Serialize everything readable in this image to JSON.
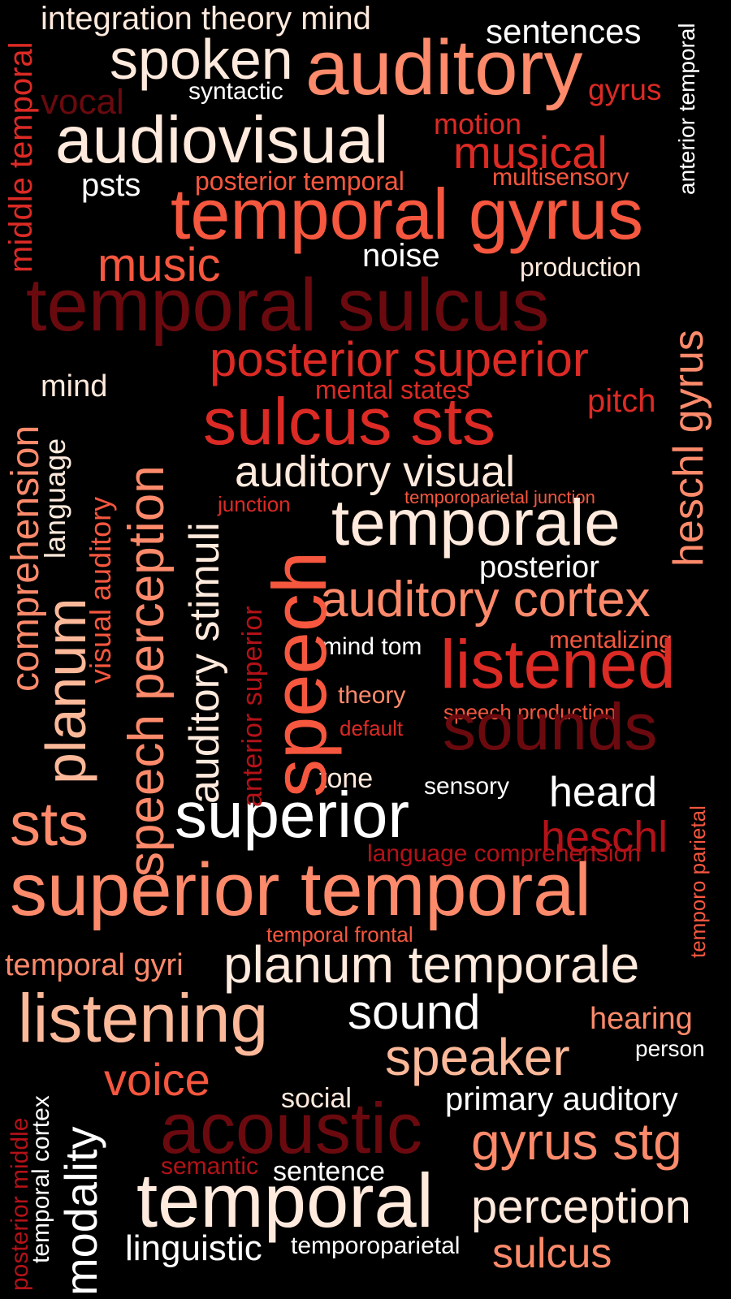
{
  "colors": {
    "background": "#000000",
    "white": "#ffffff",
    "cream": "#ffeadd",
    "peach": "#fcb99a",
    "salmon": "#fc8a6b",
    "coral": "#f6573f",
    "red": "#dc2a25",
    "crimson": "#b31218",
    "maroon": "#6a0a0f"
  },
  "words": [
    "integration theory mind",
    "sentences",
    "spoken",
    "auditory",
    "syntactic",
    "gyrus",
    "vocal",
    "audiovisual",
    "motion",
    "musical",
    "psts",
    "posterior temporal",
    "multisensory",
    "temporal gyrus",
    "music",
    "noise",
    "production",
    "temporal sulcus",
    "posterior superior",
    "mind",
    "mental states",
    "pitch",
    "sulcus sts",
    "auditory visual",
    "temporoparietal junction",
    "junction",
    "temporale",
    "posterior",
    "auditory cortex",
    "mentalizing",
    "mind tom",
    "listened",
    "theory",
    "speech production",
    "default",
    "sounds",
    "tone",
    "sensory",
    "heard",
    "sts",
    "superior",
    "heschl",
    "language comprehension",
    "superior temporal",
    "temporal frontal",
    "temporal gyri",
    "planum temporale",
    "listening",
    "sound",
    "hearing",
    "person",
    "speaker",
    "voice",
    "social",
    "primary auditory",
    "acoustic",
    "gyrus stg",
    "semantic",
    "sentence",
    "temporal",
    "perception",
    "linguistic",
    "temporoparietal",
    "sulcus",
    "middle temporal",
    "anterior temporal",
    "comprehension",
    "language",
    "speech perception",
    "visual auditory",
    "planum",
    "auditory stimuli",
    "anterior superior",
    "speech",
    "heschl gyrus",
    "temporo parietal",
    "posterior middle",
    "temporal cortex",
    "modality"
  ]
}
